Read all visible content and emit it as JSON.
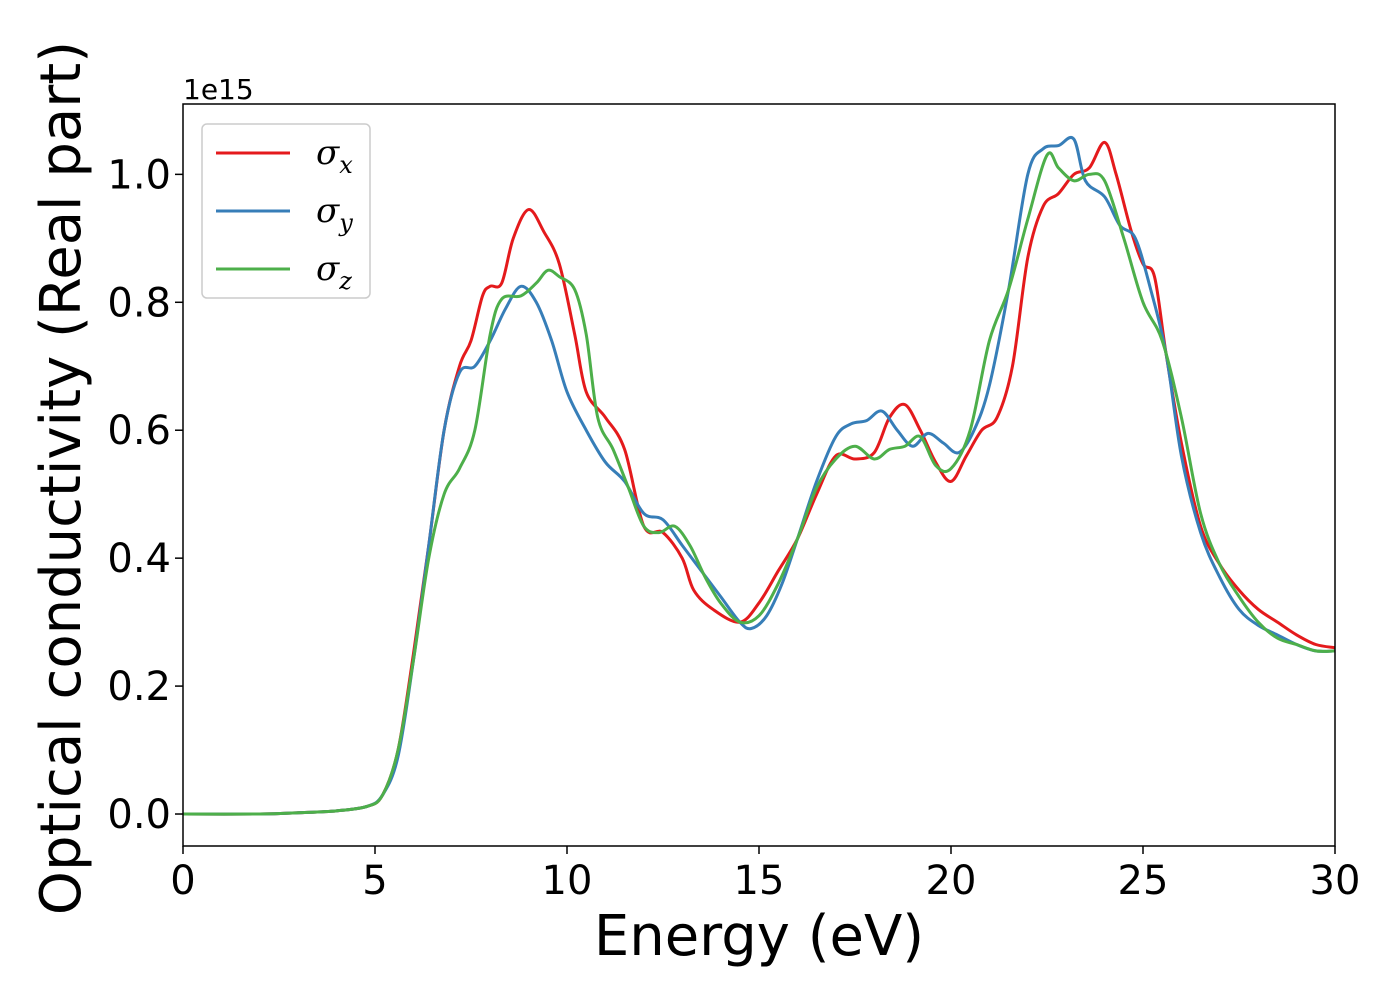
{
  "chart_data": {
    "type": "line",
    "title": "",
    "xlabel": "Energy (eV)",
    "ylabel": "Optical conductivity (Real part)",
    "y_offset_label": "1e15",
    "xlim": [
      0,
      30
    ],
    "ylim": [
      -0.05,
      1.11
    ],
    "xticks": [
      0,
      5,
      10,
      15,
      20,
      25,
      30
    ],
    "xtick_labels": [
      "0",
      "5",
      "10",
      "15",
      "20",
      "25",
      "30"
    ],
    "yticks": [
      0.0,
      0.2,
      0.4,
      0.6,
      0.8,
      1.0
    ],
    "ytick_labels": [
      "0.0",
      "0.2",
      "0.4",
      "0.6",
      "0.8",
      "1.0"
    ],
    "grid": false,
    "legend_position": "top-left",
    "series": [
      {
        "name": "σ",
        "subscript": "x",
        "color": "#e41a1c",
        "points": [
          [
            0,
            0.0
          ],
          [
            2,
            0.0
          ],
          [
            3,
            0.002
          ],
          [
            4,
            0.005
          ],
          [
            4.8,
            0.012
          ],
          [
            5.2,
            0.03
          ],
          [
            5.6,
            0.1
          ],
          [
            6,
            0.25
          ],
          [
            6.4,
            0.42
          ],
          [
            6.8,
            0.6
          ],
          [
            7.2,
            0.7
          ],
          [
            7.5,
            0.74
          ],
          [
            7.8,
            0.81
          ],
          [
            8.0,
            0.825
          ],
          [
            8.3,
            0.83
          ],
          [
            8.6,
            0.9
          ],
          [
            9.0,
            0.945
          ],
          [
            9.4,
            0.91
          ],
          [
            9.8,
            0.86
          ],
          [
            10.2,
            0.75
          ],
          [
            10.5,
            0.66
          ],
          [
            11.0,
            0.62
          ],
          [
            11.5,
            0.57
          ],
          [
            12.0,
            0.45
          ],
          [
            12.5,
            0.44
          ],
          [
            13.0,
            0.4
          ],
          [
            13.3,
            0.35
          ],
          [
            13.8,
            0.32
          ],
          [
            14.5,
            0.3
          ],
          [
            15.0,
            0.33
          ],
          [
            15.5,
            0.38
          ],
          [
            16.0,
            0.43
          ],
          [
            16.5,
            0.5
          ],
          [
            17.0,
            0.56
          ],
          [
            17.5,
            0.555
          ],
          [
            18.0,
            0.565
          ],
          [
            18.4,
            0.62
          ],
          [
            18.8,
            0.64
          ],
          [
            19.2,
            0.6
          ],
          [
            19.6,
            0.55
          ],
          [
            20.0,
            0.52
          ],
          [
            20.4,
            0.56
          ],
          [
            20.8,
            0.6
          ],
          [
            21.2,
            0.62
          ],
          [
            21.6,
            0.7
          ],
          [
            22.0,
            0.87
          ],
          [
            22.4,
            0.95
          ],
          [
            22.8,
            0.97
          ],
          [
            23.2,
            1.0
          ],
          [
            23.6,
            1.01
          ],
          [
            24.0,
            1.05
          ],
          [
            24.3,
            1.0
          ],
          [
            24.7,
            0.91
          ],
          [
            25.0,
            0.86
          ],
          [
            25.3,
            0.84
          ],
          [
            25.6,
            0.72
          ],
          [
            26.0,
            0.58
          ],
          [
            26.5,
            0.45
          ],
          [
            27.0,
            0.39
          ],
          [
            27.5,
            0.35
          ],
          [
            28.0,
            0.32
          ],
          [
            28.5,
            0.3
          ],
          [
            29.0,
            0.28
          ],
          [
            29.5,
            0.265
          ],
          [
            30,
            0.26
          ]
        ]
      },
      {
        "name": "σ",
        "subscript": "y",
        "color": "#377eb8",
        "points": [
          [
            0,
            0.0
          ],
          [
            2,
            0.0
          ],
          [
            3,
            0.002
          ],
          [
            4,
            0.005
          ],
          [
            4.8,
            0.012
          ],
          [
            5.2,
            0.03
          ],
          [
            5.6,
            0.09
          ],
          [
            6,
            0.24
          ],
          [
            6.4,
            0.42
          ],
          [
            6.8,
            0.6
          ],
          [
            7.2,
            0.69
          ],
          [
            7.6,
            0.7
          ],
          [
            8.0,
            0.74
          ],
          [
            8.4,
            0.79
          ],
          [
            8.8,
            0.825
          ],
          [
            9.2,
            0.8
          ],
          [
            9.6,
            0.74
          ],
          [
            10.0,
            0.66
          ],
          [
            10.5,
            0.6
          ],
          [
            11.0,
            0.55
          ],
          [
            11.5,
            0.52
          ],
          [
            12.0,
            0.47
          ],
          [
            12.5,
            0.46
          ],
          [
            13.0,
            0.42
          ],
          [
            13.5,
            0.38
          ],
          [
            14.0,
            0.34
          ],
          [
            14.5,
            0.3
          ],
          [
            14.8,
            0.29
          ],
          [
            15.2,
            0.31
          ],
          [
            15.6,
            0.36
          ],
          [
            16.0,
            0.43
          ],
          [
            16.5,
            0.52
          ],
          [
            17.0,
            0.59
          ],
          [
            17.4,
            0.61
          ],
          [
            17.8,
            0.615
          ],
          [
            18.2,
            0.63
          ],
          [
            18.6,
            0.6
          ],
          [
            19.0,
            0.575
          ],
          [
            19.4,
            0.595
          ],
          [
            19.8,
            0.58
          ],
          [
            20.2,
            0.565
          ],
          [
            20.6,
            0.6
          ],
          [
            21.0,
            0.67
          ],
          [
            21.5,
            0.82
          ],
          [
            22.0,
            1.0
          ],
          [
            22.4,
            1.04
          ],
          [
            22.8,
            1.045
          ],
          [
            23.2,
            1.055
          ],
          [
            23.5,
            0.99
          ],
          [
            24.0,
            0.965
          ],
          [
            24.4,
            0.92
          ],
          [
            24.8,
            0.9
          ],
          [
            25.2,
            0.82
          ],
          [
            25.6,
            0.72
          ],
          [
            26.0,
            0.56
          ],
          [
            26.5,
            0.44
          ],
          [
            27.0,
            0.37
          ],
          [
            27.5,
            0.32
          ],
          [
            28.0,
            0.295
          ],
          [
            28.5,
            0.28
          ],
          [
            29.0,
            0.265
          ],
          [
            29.5,
            0.255
          ],
          [
            30,
            0.255
          ]
        ]
      },
      {
        "name": "σ",
        "subscript": "z",
        "color": "#4daf4a",
        "points": [
          [
            0,
            0.0
          ],
          [
            2,
            0.0
          ],
          [
            3,
            0.002
          ],
          [
            4,
            0.005
          ],
          [
            4.8,
            0.012
          ],
          [
            5.2,
            0.03
          ],
          [
            5.6,
            0.1
          ],
          [
            6,
            0.24
          ],
          [
            6.4,
            0.4
          ],
          [
            6.8,
            0.5
          ],
          [
            7.2,
            0.54
          ],
          [
            7.6,
            0.6
          ],
          [
            8.0,
            0.75
          ],
          [
            8.3,
            0.805
          ],
          [
            8.8,
            0.81
          ],
          [
            9.2,
            0.83
          ],
          [
            9.5,
            0.85
          ],
          [
            9.8,
            0.84
          ],
          [
            10.2,
            0.82
          ],
          [
            10.5,
            0.75
          ],
          [
            10.8,
            0.62
          ],
          [
            11.2,
            0.57
          ],
          [
            11.6,
            0.51
          ],
          [
            12.0,
            0.45
          ],
          [
            12.4,
            0.44
          ],
          [
            12.8,
            0.45
          ],
          [
            13.2,
            0.42
          ],
          [
            13.6,
            0.37
          ],
          [
            14.0,
            0.33
          ],
          [
            14.5,
            0.3
          ],
          [
            15.0,
            0.31
          ],
          [
            15.5,
            0.36
          ],
          [
            16.0,
            0.43
          ],
          [
            16.5,
            0.51
          ],
          [
            17.0,
            0.555
          ],
          [
            17.5,
            0.575
          ],
          [
            18.0,
            0.555
          ],
          [
            18.4,
            0.57
          ],
          [
            18.8,
            0.575
          ],
          [
            19.2,
            0.59
          ],
          [
            19.6,
            0.545
          ],
          [
            20.0,
            0.54
          ],
          [
            20.5,
            0.6
          ],
          [
            21.0,
            0.74
          ],
          [
            21.5,
            0.82
          ],
          [
            22.0,
            0.93
          ],
          [
            22.5,
            1.03
          ],
          [
            22.8,
            1.01
          ],
          [
            23.2,
            0.99
          ],
          [
            23.6,
            1.0
          ],
          [
            24.0,
            0.99
          ],
          [
            24.5,
            0.9
          ],
          [
            25.0,
            0.8
          ],
          [
            25.5,
            0.74
          ],
          [
            26.0,
            0.62
          ],
          [
            26.5,
            0.47
          ],
          [
            27.0,
            0.39
          ],
          [
            27.5,
            0.34
          ],
          [
            28.0,
            0.3
          ],
          [
            28.5,
            0.275
          ],
          [
            29.0,
            0.265
          ],
          [
            29.5,
            0.255
          ],
          [
            30,
            0.255
          ]
        ]
      }
    ]
  }
}
